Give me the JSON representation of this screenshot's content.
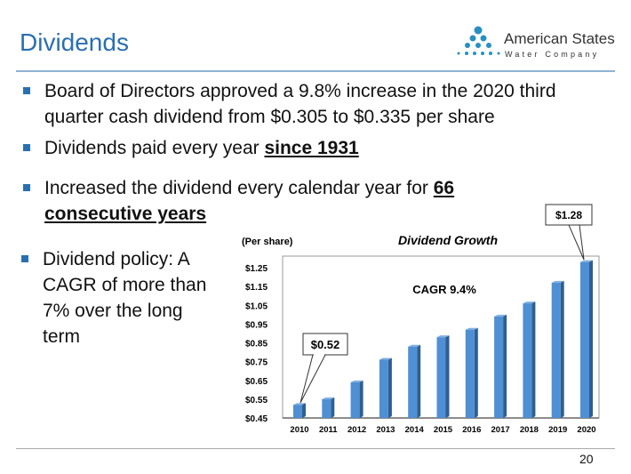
{
  "slide": {
    "title": "Dividends",
    "logo": {
      "name": "American States",
      "sub": "Water Company"
    },
    "bullets": [
      {
        "text": "Board of Directors approved a 9.8% increase in the 2020 third quarter cash dividend from $0.305 to $0.335 per share"
      },
      {
        "text": "Dividends paid every year ",
        "bold": "since 1931"
      },
      {
        "text": "Increased the dividend every calendar year for ",
        "bold": "66 consecutive years"
      },
      {
        "text": "Dividend policy: A CAGR of more than 7% over the long term"
      }
    ],
    "page_number": "20",
    "accent_color": "#2a6fb0"
  },
  "chart_data": {
    "type": "bar",
    "title": "Dividend Growth",
    "ylabel": "(Per share)",
    "categories": [
      "2010",
      "2011",
      "2012",
      "2013",
      "2014",
      "2015",
      "2016",
      "2017",
      "2018",
      "2019",
      "2020"
    ],
    "values": [
      0.52,
      0.55,
      0.64,
      0.76,
      0.83,
      0.88,
      0.92,
      0.99,
      1.06,
      1.17,
      1.28
    ],
    "ylim": [
      0.45,
      1.3
    ],
    "yticks": [
      "$0.45",
      "$0.55",
      "$0.65",
      "$0.75",
      "$0.85",
      "$0.95",
      "$1.05",
      "$1.15",
      "$1.25"
    ],
    "annotations": {
      "cagr": "CAGR 9.4%",
      "first": "$0.52",
      "last": "$1.28"
    },
    "bar_color": "#4f8fd4",
    "grid": false,
    "legend": "none"
  }
}
